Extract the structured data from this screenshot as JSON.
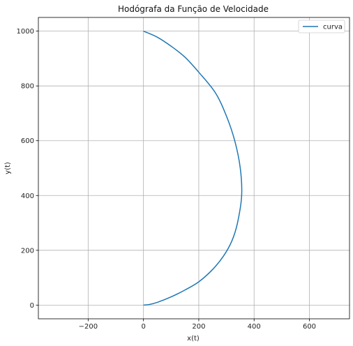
{
  "chart_data": {
    "type": "line",
    "title": "Hodógrafa da Função de Velocidade",
    "xlabel": "x(t)",
    "ylabel": "y(t)",
    "xlim": [
      -380,
      745
    ],
    "ylim": [
      -50,
      1050
    ],
    "xticks": [
      -200,
      0,
      200,
      400,
      600
    ],
    "xtick_labels": [
      "−200",
      "0",
      "200",
      "400",
      "600"
    ],
    "yticks": [
      0,
      200,
      400,
      600,
      800,
      1000
    ],
    "ytick_labels": [
      "0",
      "200",
      "400",
      "600",
      "800",
      "1000"
    ],
    "grid": true,
    "legend": "top-right",
    "series": [
      {
        "name": "curva",
        "color": "#1f77b4",
        "points": [
          [
            0,
            0
          ],
          [
            20,
            2
          ],
          [
            50,
            10
          ],
          [
            100,
            30
          ],
          [
            150,
            55
          ],
          [
            200,
            85
          ],
          [
            250,
            130
          ],
          [
            290,
            180
          ],
          [
            320,
            235
          ],
          [
            340,
            300
          ],
          [
            355,
            400
          ],
          [
            350,
            500
          ],
          [
            330,
            600
          ],
          [
            300,
            690
          ],
          [
            260,
            775
          ],
          [
            200,
            850
          ],
          [
            150,
            905
          ],
          [
            100,
            945
          ],
          [
            50,
            978
          ],
          [
            0,
            1000
          ]
        ]
      }
    ]
  }
}
